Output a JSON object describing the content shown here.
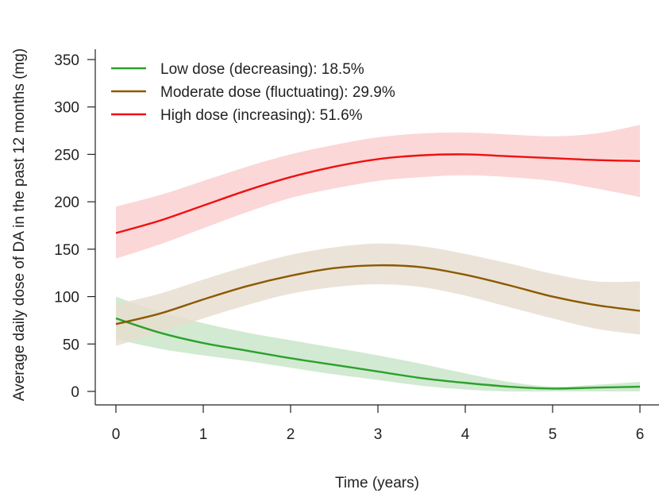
{
  "chart_data": {
    "type": "line",
    "xlabel": "Time (years)",
    "ylabel": "Average daily dose of DA in the past 12 months (mg)",
    "xlim": [
      0,
      6
    ],
    "ylim": [
      0,
      350
    ],
    "xticks": [
      0,
      1,
      2,
      3,
      4,
      5,
      6
    ],
    "yticks": [
      0,
      50,
      100,
      150,
      200,
      250,
      300,
      350
    ],
    "grid": false,
    "legend_position": "top-left",
    "series": [
      {
        "name": "Low dose (decreasing): 18.5%",
        "color": "#2ca02c",
        "band_color": "#c9e6c9",
        "x": [
          0,
          0.5,
          1,
          1.5,
          2,
          2.5,
          3,
          3.5,
          4,
          4.5,
          5,
          5.5,
          6
        ],
        "y": [
          77,
          62,
          51,
          43,
          35,
          28,
          21,
          14,
          9,
          5,
          3,
          4,
          5
        ],
        "lower": [
          55,
          45,
          38,
          32,
          25,
          18,
          12,
          6,
          2,
          0,
          0,
          0,
          0
        ],
        "upper": [
          100,
          84,
          72,
          62,
          54,
          46,
          38,
          29,
          19,
          10,
          5,
          7,
          10
        ]
      },
      {
        "name": "Moderate dose (fluctuating): 29.9%",
        "color": "#8b5a00",
        "band_color": "#e7ded0",
        "x": [
          0,
          0.5,
          1,
          1.5,
          2,
          2.5,
          3,
          3.5,
          4,
          4.5,
          5,
          5.5,
          6
        ],
        "y": [
          71,
          82,
          97,
          111,
          122,
          130,
          133,
          131,
          123,
          112,
          100,
          91,
          85
        ],
        "lower": [
          48,
          62,
          77,
          91,
          103,
          110,
          113,
          110,
          101,
          89,
          77,
          66,
          60
        ],
        "upper": [
          92,
          103,
          118,
          132,
          144,
          152,
          156,
          153,
          145,
          135,
          124,
          116,
          116
        ]
      },
      {
        "name": "High dose (increasing): 51.6%",
        "color": "#ee1111",
        "band_color": "#fcd0d0",
        "x": [
          0,
          0.5,
          1,
          1.5,
          2,
          2.5,
          3,
          3.5,
          4,
          4.5,
          5,
          5.5,
          6
        ],
        "y": [
          167,
          180,
          196,
          212,
          226,
          237,
          245,
          249,
          250,
          248,
          246,
          244,
          243
        ],
        "lower": [
          140,
          155,
          172,
          189,
          204,
          214,
          222,
          226,
          228,
          226,
          222,
          214,
          205
        ],
        "upper": [
          195,
          207,
          222,
          237,
          250,
          260,
          268,
          272,
          273,
          271,
          269,
          272,
          281
        ]
      }
    ]
  }
}
